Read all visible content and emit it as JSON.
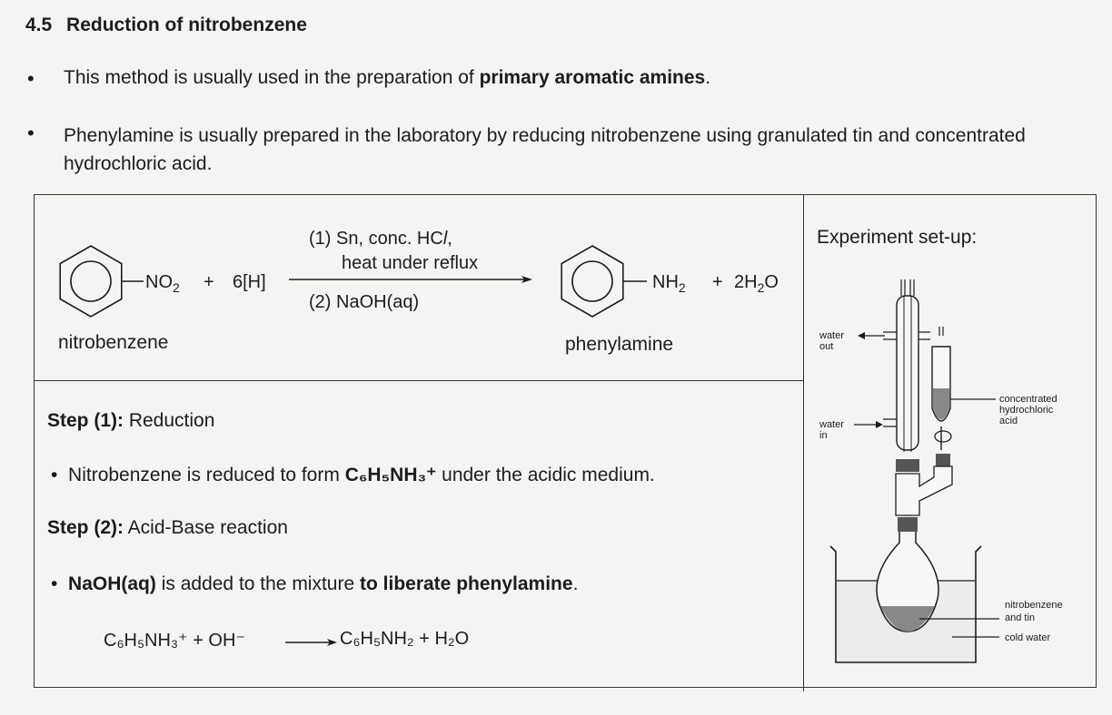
{
  "header": {
    "number": "4.5",
    "title": "Reduction of nitrobenzene"
  },
  "bullets": [
    {
      "pre": "This method is usually used in the preparation of ",
      "bold": "primary aromatic amines",
      "post": "."
    },
    {
      "text": "Phenylamine is usually prepared in the laboratory by reducing nitrobenzene using granulated tin and concentrated hydrochloric acid."
    }
  ],
  "equation": {
    "reactant_group": "NO",
    "reactant_group_sub": "2",
    "plus1": "+",
    "reagent": "6[H]",
    "condition_1": "(1)  Sn, conc. HC",
    "condition_1_italic": "l",
    "condition_1_end": ",",
    "condition_1b": "heat under reflux",
    "condition_2": "(2)  NaOH(aq)",
    "product_group": "NH",
    "product_group_sub": "2",
    "plus2": "+",
    "water_coef": "2H",
    "water_sub": "2",
    "water_end": "O",
    "label_reactant": "nitrobenzene",
    "label_product": "phenylamine"
  },
  "steps": {
    "step1_label": "Step (1):",
    "step1_name": " Reduction",
    "step1_bullet_pre": "Nitrobenzene is reduced to form ",
    "step1_formula": "C₆H₅NH₃⁺",
    "step1_bullet_post": " under the acidic medium.",
    "step2_label": "Step (2):",
    "step2_name": " Acid-Base reaction",
    "step2_bold1": "NaOH(aq)",
    "step2_mid": " is added to the mixture ",
    "step2_bold2": "to liberate phenylamine",
    "step2_end": ".",
    "ionic_left": "C₆H₅NH₃⁺ + OH⁻",
    "ionic_right": "C₆H₅NH₂ + H₂O"
  },
  "setup": {
    "title": "Experiment set-up:",
    "water_out": [
      "water",
      "out"
    ],
    "water_in": [
      "water",
      "in"
    ],
    "acid_label": [
      "concentrated",
      "hydrochloric",
      "acid"
    ],
    "mix_label": [
      "nitrobenzene",
      "and tin"
    ],
    "cold_label": "cold water"
  }
}
